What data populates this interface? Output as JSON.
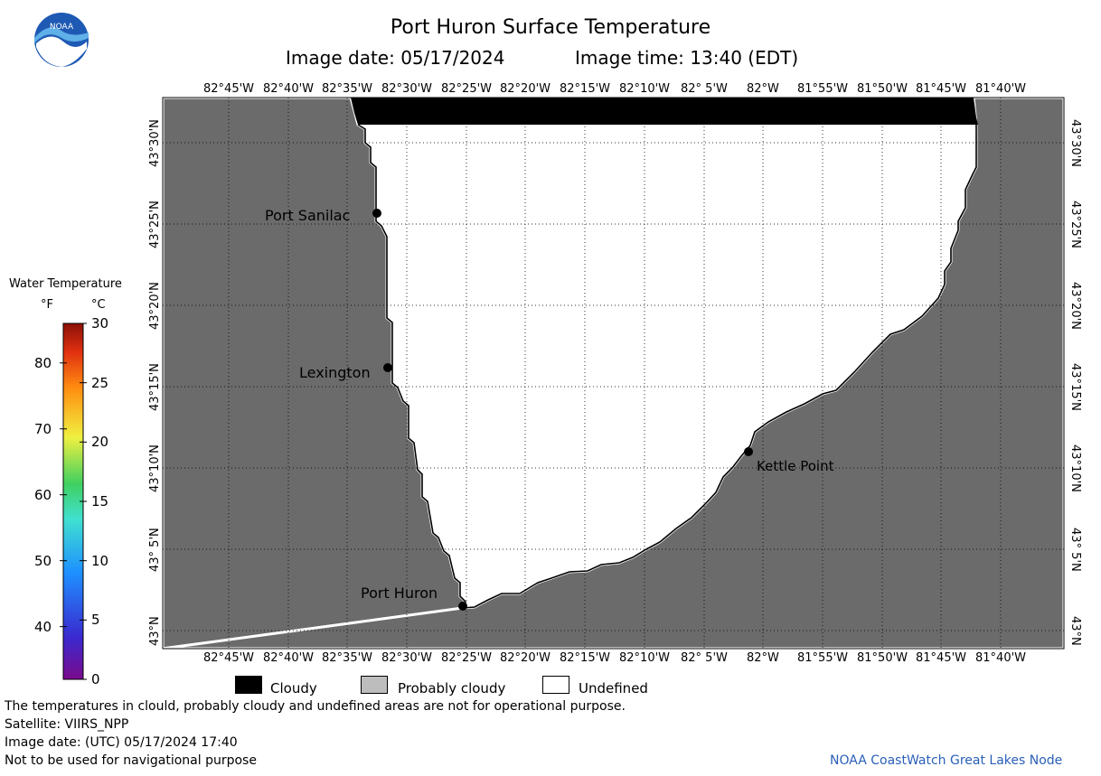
{
  "header": {
    "title": "Port Huron Surface Temperature",
    "image_date": "Image date: 05/17/2024",
    "image_time": "Image time: 13:40 (EDT)"
  },
  "logo": {
    "text": "NOAA"
  },
  "colorbar": {
    "title": "Water Temperature",
    "unit_f": "°F",
    "unit_c": "°C",
    "f_ticks": [
      "80",
      "70",
      "60",
      "50",
      "40"
    ],
    "c_ticks": [
      "30",
      "25",
      "20",
      "15",
      "10",
      "5",
      "0"
    ]
  },
  "axes": {
    "lon_labels": [
      "82°45'W",
      "82°40'W",
      "82°35'W",
      "82°30'W",
      "82°25'W",
      "82°20'W",
      "82°15'W",
      "82°10'W",
      "82° 5'W",
      "82°W",
      "81°55'W",
      "81°50'W",
      "81°45'W",
      "81°40'W"
    ],
    "lat_labels": [
      "43°30'N",
      "43°25'N",
      "43°20'N",
      "43°15'N",
      "43°10'N",
      "43° 5'N",
      "43°N"
    ]
  },
  "places": [
    {
      "name": "Port Sanilac"
    },
    {
      "name": "Lexington"
    },
    {
      "name": "Kettle Point"
    },
    {
      "name": "Port Huron"
    }
  ],
  "legend": [
    {
      "label": "Cloudy",
      "color": "#000000"
    },
    {
      "label": "Probably cloudy",
      "color": "#bdbdbd"
    },
    {
      "label": "Undefined",
      "color": "#ffffff"
    }
  ],
  "colors": {
    "land": "#6b6b6b",
    "cloud": "#000000",
    "undefined": "#ffffff"
  },
  "footer": {
    "disclaimer": "The temperatures in clould, probably cloudy and undefined areas are not for operational purpose.",
    "satellite": "Satellite: VIIRS_NPP",
    "utc_date": "Image date: (UTC) 05/17/2024  17:40",
    "nav_warning": "Not to be used for navigational purpose",
    "credit": "NOAA CoastWatch Great Lakes Node"
  }
}
